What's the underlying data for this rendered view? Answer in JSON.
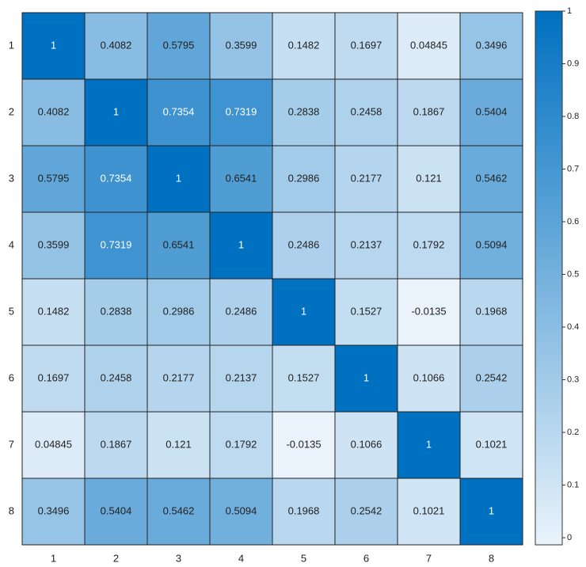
{
  "chart_data": {
    "type": "heatmap",
    "x": [
      "1",
      "2",
      "3",
      "4",
      "5",
      "6",
      "7",
      "8"
    ],
    "y": [
      "1",
      "2",
      "3",
      "4",
      "5",
      "6",
      "7",
      "8"
    ],
    "values": [
      [
        1,
        0.4082,
        0.5795,
        0.3599,
        0.1482,
        0.1697,
        0.04845,
        0.3496
      ],
      [
        0.4082,
        1,
        0.7354,
        0.7319,
        0.2838,
        0.2458,
        0.1867,
        0.5404
      ],
      [
        0.5795,
        0.7354,
        1,
        0.6541,
        0.2986,
        0.2177,
        0.121,
        0.5462
      ],
      [
        0.3599,
        0.7319,
        0.6541,
        1,
        0.2486,
        0.2137,
        0.1792,
        0.5094
      ],
      [
        0.1482,
        0.2838,
        0.2986,
        0.2486,
        1,
        0.1527,
        -0.0135,
        0.1968
      ],
      [
        0.1697,
        0.2458,
        0.2177,
        0.2137,
        0.1527,
        1,
        0.1066,
        0.2542
      ],
      [
        0.04845,
        0.1867,
        0.121,
        0.1792,
        -0.0135,
        0.1066,
        1,
        0.1021
      ],
      [
        0.3496,
        0.5404,
        0.5462,
        0.5094,
        0.1968,
        0.2542,
        0.1021,
        1
      ]
    ],
    "cmap": [
      "#eaf3fb",
      "#0070c0"
    ],
    "clim": [
      -0.0135,
      1
    ],
    "cticks": [
      0,
      0.1,
      0.2,
      0.3,
      0.4,
      0.5,
      0.6,
      0.7,
      0.8,
      0.9,
      1
    ]
  }
}
